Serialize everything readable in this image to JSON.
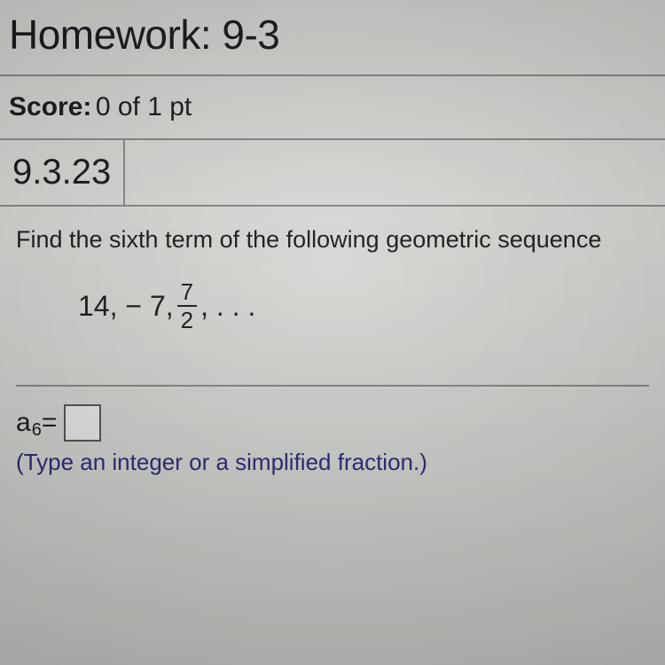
{
  "header": {
    "title": "Homework: 9-3"
  },
  "score": {
    "label": "Score:",
    "value": "0 of 1 pt"
  },
  "problem": {
    "number": "9.3.23",
    "question": "Find the sixth term of the following geometric sequence",
    "sequence_prefix": "14,  − 7, ",
    "fraction_num": "7",
    "fraction_den": "2",
    "sequence_suffix": ",  . . .",
    "answer_var": "a",
    "answer_sub": "6",
    "equals": " = ",
    "instruction": "(Type an integer or a simplified fraction.)"
  },
  "style": {
    "background": "#d8dad6",
    "border_color": "#888888",
    "text_color": "#1a1a1a",
    "instruction_color": "#2a2a7a",
    "answer_box_border": "#555555",
    "answer_box_bg": "#eeeeec",
    "title_fontsize": 46,
    "score_fontsize": 30,
    "problem_number_fontsize": 40,
    "question_fontsize": 27,
    "sequence_fontsize": 32,
    "answer_fontsize": 30,
    "instruction_fontsize": 26
  }
}
